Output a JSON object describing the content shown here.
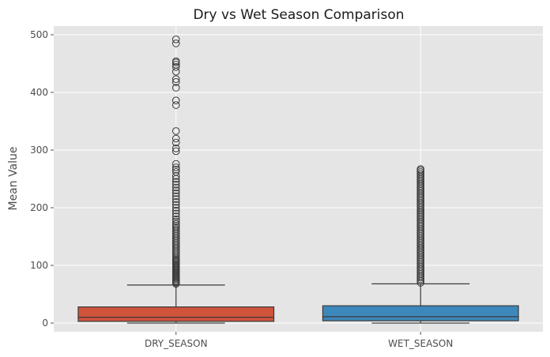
{
  "chart_data": {
    "type": "box",
    "title": "Dry vs Wet Season Comparison",
    "xlabel": "",
    "ylabel": "Mean Value",
    "ylim": [
      -15,
      515
    ],
    "yticks": [
      0,
      100,
      200,
      300,
      400,
      500
    ],
    "grid": true,
    "categories": [
      "DRY_SEASON",
      "WET_SEASON"
    ],
    "colors": [
      "#d0533c",
      "#3d88bb"
    ],
    "background": "#e5e5e5",
    "boxes": [
      {
        "category": "DRY_SEASON",
        "whisker_low": 0,
        "q1": 3,
        "median": 10,
        "q3": 28,
        "whisker_high": 66,
        "outliers": [
          68,
          70,
          72,
          74,
          76,
          78,
          80,
          82,
          84,
          86,
          88,
          90,
          92,
          94,
          96,
          98,
          100,
          102,
          104,
          106,
          108,
          110,
          112,
          115,
          118,
          121,
          124,
          127,
          130,
          133,
          136,
          139,
          142,
          145,
          148,
          151,
          154,
          157,
          160,
          163,
          166,
          169,
          172,
          176,
          180,
          185,
          190,
          195,
          200,
          205,
          210,
          215,
          220,
          225,
          230,
          235,
          240,
          245,
          250,
          255,
          262,
          266,
          270,
          276,
          298,
          303,
          313,
          320,
          333,
          378,
          386,
          408,
          418,
          423,
          436,
          444,
          448,
          452,
          454,
          485,
          492
        ]
      },
      {
        "category": "WET_SEASON",
        "whisker_low": 0,
        "q1": 4,
        "median": 11,
        "q3": 30,
        "whisker_high": 68,
        "outliers": [
          70,
          73,
          76,
          79,
          82,
          85,
          88,
          91,
          94,
          97,
          100,
          103,
          106,
          109,
          112,
          115,
          118,
          121,
          124,
          127,
          130,
          133,
          136,
          139,
          142,
          145,
          148,
          151,
          154,
          157,
          160,
          163,
          166,
          169,
          172,
          175,
          178,
          181,
          184,
          187,
          190,
          193,
          196,
          199,
          202,
          205,
          208,
          211,
          214,
          217,
          220,
          223,
          226,
          229,
          232,
          235,
          238,
          241,
          244,
          247,
          250,
          253,
          256,
          259,
          262,
          265,
          267
        ]
      }
    ]
  }
}
